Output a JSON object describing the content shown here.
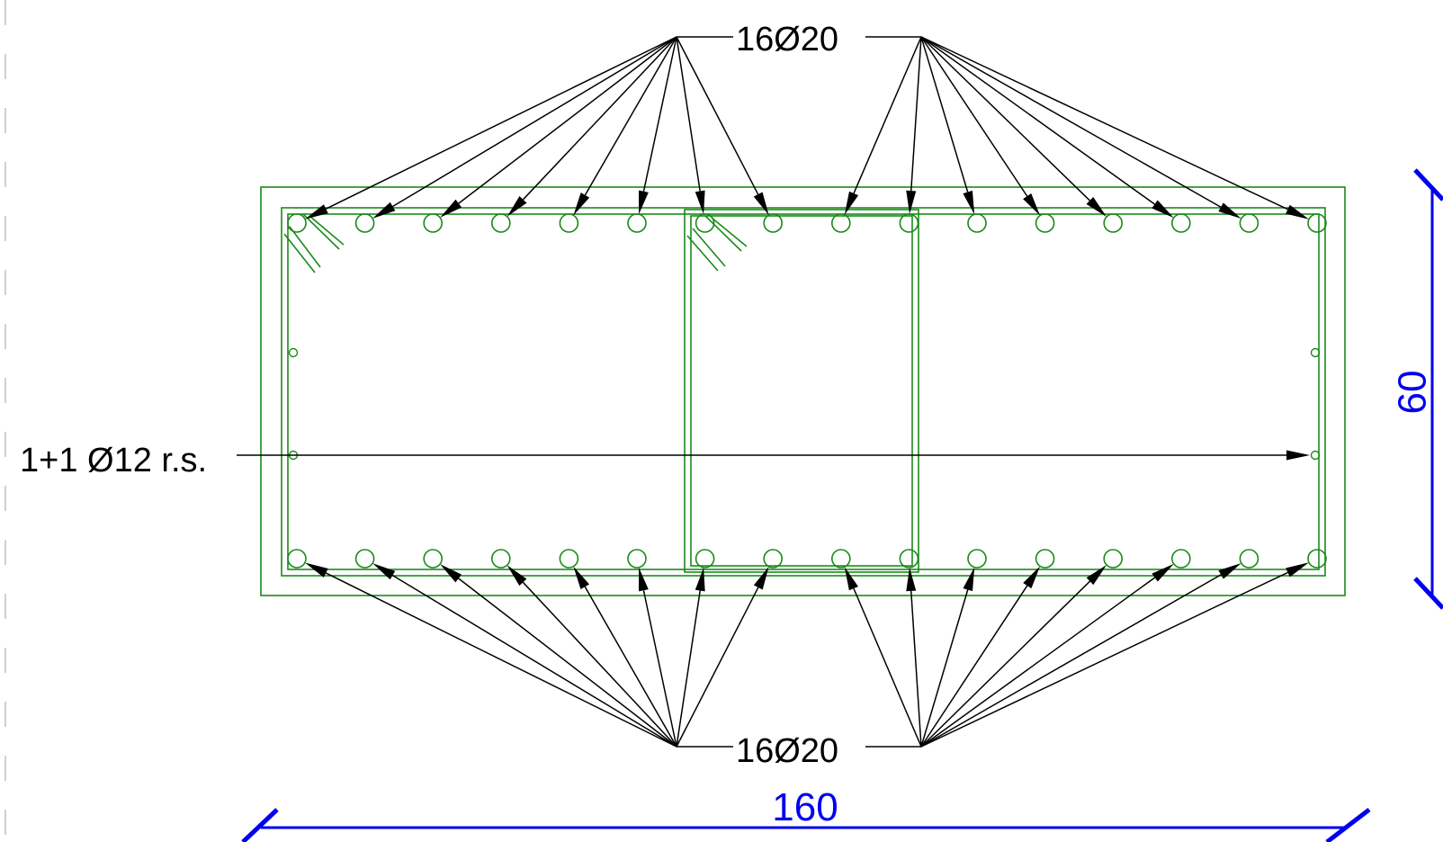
{
  "drawing": {
    "top_bars_label": "16Ø20",
    "bottom_bars_label": "16Ø20",
    "side_bars_label": "1+1 Ø12 r.s.",
    "width_dimension": "160",
    "height_dimension": "60"
  },
  "colors": {
    "concrete": "#1a8a1a",
    "rebar": "#1a8a1a",
    "leader": "#000000",
    "dimension": "#0000ee"
  }
}
